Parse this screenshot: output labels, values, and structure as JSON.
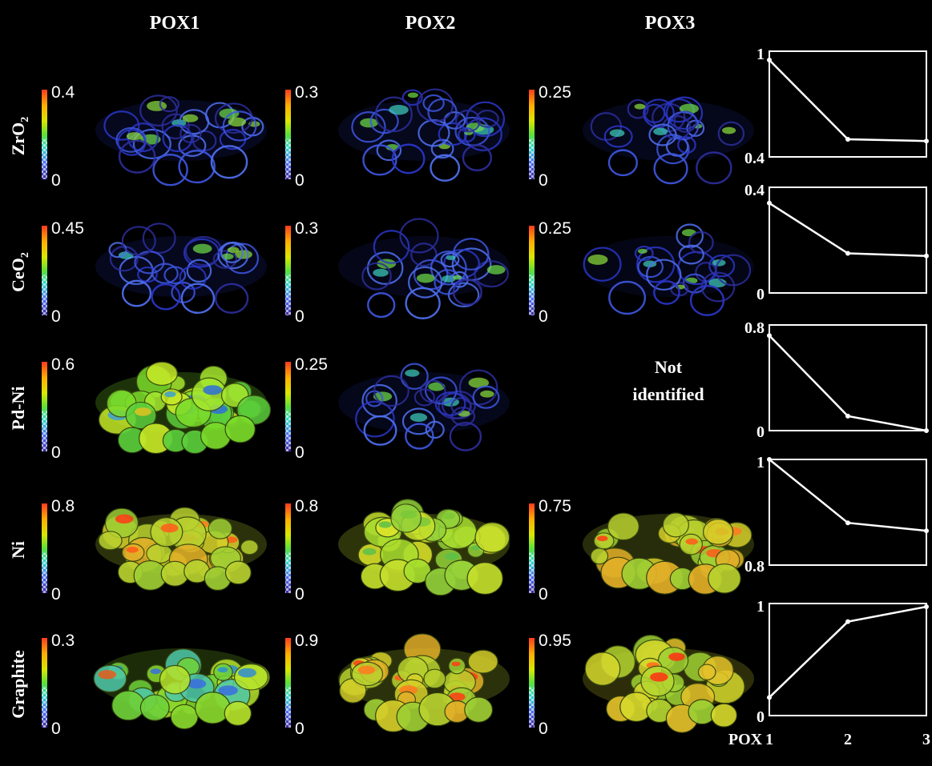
{
  "columns": [
    "POX1",
    "POX2",
    "POX3"
  ],
  "rows": [
    {
      "label_main": "ZrO",
      "label_sub": "2",
      "scales": [
        {
          "max": "0.4",
          "min": "0"
        },
        {
          "max": "0.3",
          "min": "0"
        },
        {
          "max": "0.25",
          "min": "0"
        }
      ],
      "palette": [
        "blue",
        "blue",
        "blue"
      ],
      "density": [
        0.55,
        0.5,
        0.45
      ]
    },
    {
      "label_main": "CeO",
      "label_sub": "2",
      "scales": [
        {
          "max": "0.45",
          "min": "0"
        },
        {
          "max": "0.3",
          "min": "0"
        },
        {
          "max": "0.25",
          "min": "0"
        }
      ],
      "palette": [
        "blue",
        "blue",
        "blue"
      ],
      "density": [
        0.55,
        0.4,
        0.3
      ]
    },
    {
      "label_main": "Pd-Ni",
      "label_sub": "",
      "scales": [
        {
          "max": "0.6",
          "min": "0"
        },
        {
          "max": "0.25",
          "min": "0"
        },
        null
      ],
      "palette": [
        "green",
        "blue",
        "none"
      ],
      "density": [
        1.0,
        0.45,
        0
      ]
    },
    {
      "label_main": "Ni",
      "label_sub": "",
      "scales": [
        {
          "max": "0.8",
          "min": "0"
        },
        {
          "max": "0.8",
          "min": "0"
        },
        {
          "max": "0.75",
          "min": "0"
        }
      ],
      "palette": [
        "orange",
        "yellowgreen",
        "orange"
      ],
      "density": [
        1.0,
        1.0,
        0.9
      ]
    },
    {
      "label_main": "Graphite",
      "label_sub": "",
      "scales": [
        {
          "max": "0.3",
          "min": "0"
        },
        {
          "max": "0.9",
          "min": "0"
        },
        {
          "max": "0.95",
          "min": "0"
        }
      ],
      "palette": [
        "greenblue",
        "orange",
        "red"
      ],
      "density": [
        0.85,
        1.0,
        0.9
      ]
    }
  ],
  "not_identified": {
    "line1": "Not",
    "line2": "identified"
  },
  "chart_data": [
    {
      "type": "line",
      "x": [
        1,
        2,
        3
      ],
      "values": [
        0.95,
        0.5,
        0.49
      ],
      "ylim": [
        0.4,
        1.0
      ],
      "ytick_labels": [
        "1",
        "0.4"
      ],
      "xlabel": "",
      "title": ""
    },
    {
      "type": "line",
      "x": [
        1,
        2,
        3
      ],
      "values": [
        0.34,
        0.15,
        0.14
      ],
      "ylim": [
        0,
        0.4
      ],
      "ytick_labels": [
        "0.4",
        "0"
      ],
      "xlabel": "",
      "title": ""
    },
    {
      "type": "line",
      "x": [
        1,
        2,
        3
      ],
      "values": [
        0.72,
        0.11,
        0.0
      ],
      "ylim": [
        0,
        0.8
      ],
      "ytick_labels": [
        "0.8",
        "0"
      ],
      "xlabel": "",
      "title": ""
    },
    {
      "type": "line",
      "x": [
        1,
        2,
        3
      ],
      "values": [
        1.0,
        0.88,
        0.865
      ],
      "ylim": [
        0.8,
        1.0
      ],
      "ytick_labels": [
        "1",
        "0.8"
      ],
      "xlabel": "",
      "title": ""
    },
    {
      "type": "line",
      "x": [
        1,
        2,
        3
      ],
      "values": [
        0.17,
        0.88,
        1.02
      ],
      "ylim": [
        0,
        1.05
      ],
      "ytick_labels": [
        "1",
        "0"
      ],
      "xlabel": "POX",
      "xtick_labels": [
        "1",
        "2",
        "3"
      ],
      "title": ""
    }
  ]
}
